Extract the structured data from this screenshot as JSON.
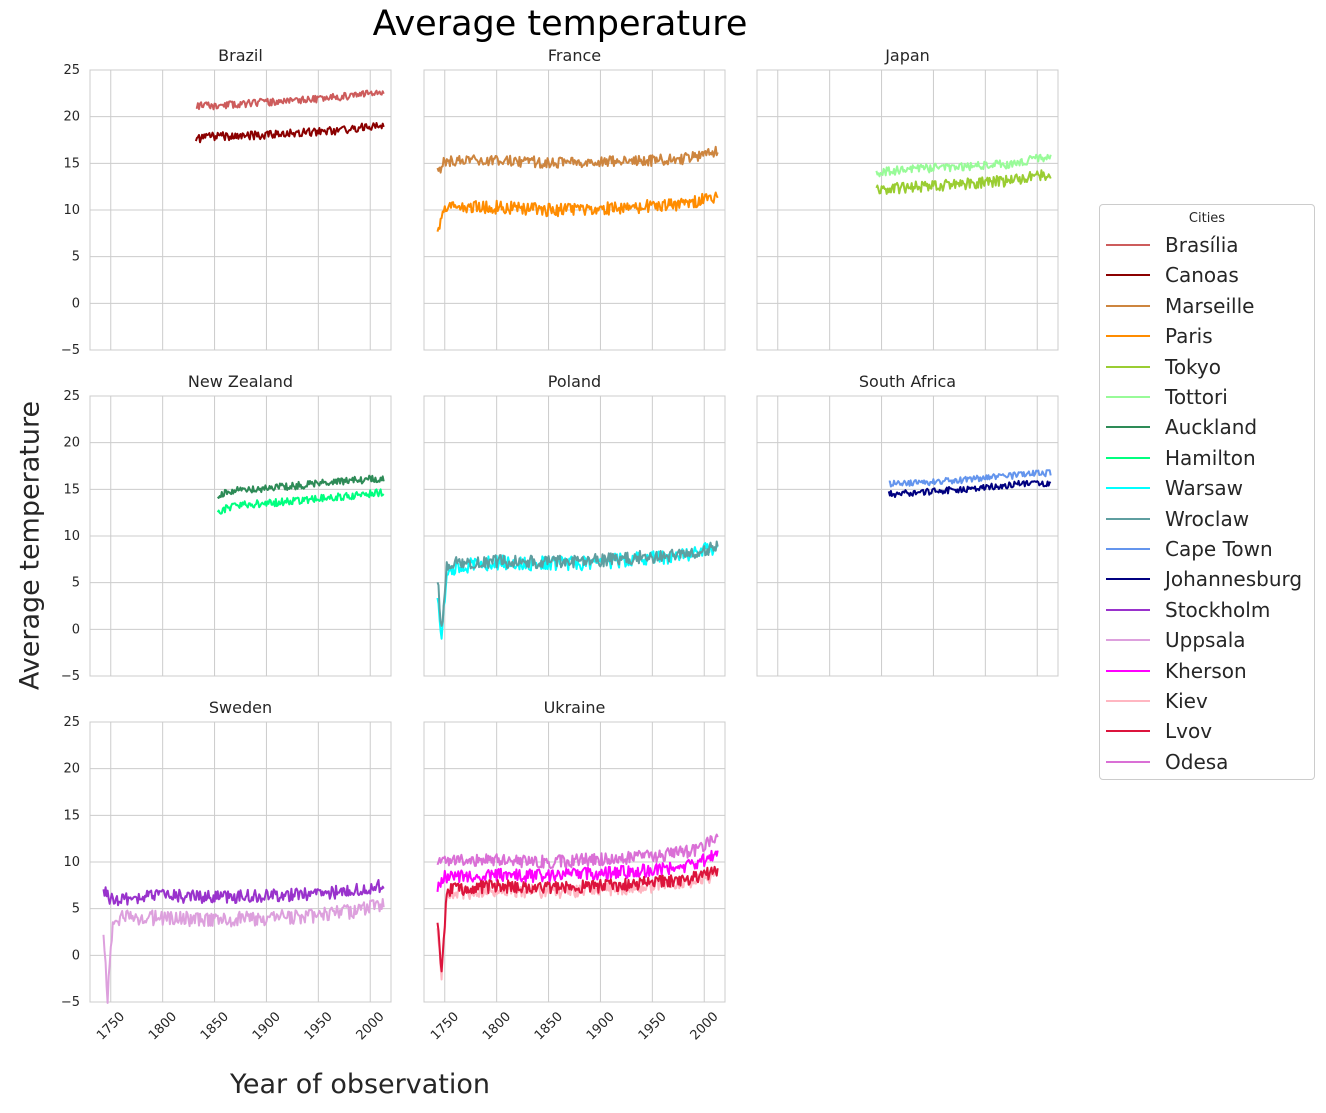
{
  "figure": {
    "title": "Average temperature",
    "ylabel": "Average temperature",
    "xlabel": "Year of observation"
  },
  "legend": {
    "title": "Cities",
    "items": [
      {
        "label": "Brasília",
        "color": "#cd5c5c"
      },
      {
        "label": "Canoas",
        "color": "#8b0000"
      },
      {
        "label": "Marseille",
        "color": "#cd853f"
      },
      {
        "label": "Paris",
        "color": "#ff8c00"
      },
      {
        "label": "Tokyo",
        "color": "#9acd32"
      },
      {
        "label": "Tottori",
        "color": "#98fb98"
      },
      {
        "label": "Auckland",
        "color": "#2e8b57"
      },
      {
        "label": "Hamilton",
        "color": "#00ff7f"
      },
      {
        "label": "Warsaw",
        "color": "#00ffff"
      },
      {
        "label": "Wroclaw",
        "color": "#5f9ea0"
      },
      {
        "label": "Cape Town",
        "color": "#6495ed"
      },
      {
        "label": "Johannesburg",
        "color": "#000080"
      },
      {
        "label": "Stockholm",
        "color": "#9932cc"
      },
      {
        "label": "Uppsala",
        "color": "#dda0dd"
      },
      {
        "label": "Kherson",
        "color": "#ff00ff"
      },
      {
        "label": "Kiev",
        "color": "#ffb6c1"
      },
      {
        "label": "Lvov",
        "color": "#dc143c"
      },
      {
        "label": "Odesa",
        "color": "#da70d6"
      }
    ]
  },
  "chart_data": {
    "type": "line",
    "xlim": [
      1730,
      2020
    ],
    "ylim": [
      -5,
      25
    ],
    "yticks": [
      "−5",
      "0",
      "5",
      "10",
      "15",
      "20",
      "25"
    ],
    "xticks": [
      "1750",
      "1800",
      "1850",
      "1900",
      "1950",
      "2000"
    ],
    "grid": true,
    "legend_position": "right",
    "panels": [
      {
        "title": "Brazil",
        "series": [
          {
            "name": "Brasília",
            "color": "#cd5c5c",
            "start": 1832,
            "end": 2013,
            "points": [
              [
                1832,
                21.2
              ],
              [
                1850,
                21.1
              ],
              [
                1870,
                21.3
              ],
              [
                1890,
                21.5
              ],
              [
                1910,
                21.6
              ],
              [
                1930,
                21.8
              ],
              [
                1950,
                21.9
              ],
              [
                1970,
                22.1
              ],
              [
                1990,
                22.4
              ],
              [
                2013,
                22.6
              ]
            ],
            "noise": 0.4,
            "seed": 11
          },
          {
            "name": "Canoas",
            "color": "#8b0000",
            "start": 1832,
            "end": 2013,
            "points": [
              [
                1832,
                17.6
              ],
              [
                1850,
                17.9
              ],
              [
                1870,
                17.9
              ],
              [
                1890,
                18.0
              ],
              [
                1910,
                18.1
              ],
              [
                1930,
                18.3
              ],
              [
                1950,
                18.4
              ],
              [
                1970,
                18.5
              ],
              [
                1990,
                18.8
              ],
              [
                2013,
                19.2
              ]
            ],
            "noise": 0.45,
            "seed": 12
          }
        ]
      },
      {
        "title": "France",
        "series": [
          {
            "name": "Marseille",
            "color": "#cd853f",
            "start": 1743,
            "end": 2013,
            "points": [
              [
                1743,
                14.0
              ],
              [
                1750,
                15.2
              ],
              [
                1800,
                15.3
              ],
              [
                1850,
                15.1
              ],
              [
                1900,
                15.2
              ],
              [
                1950,
                15.3
              ],
              [
                1980,
                15.5
              ],
              [
                2013,
                16.3
              ]
            ],
            "noise": 0.6,
            "seed": 21
          },
          {
            "name": "Paris",
            "color": "#ff8c00",
            "start": 1743,
            "end": 2013,
            "points": [
              [
                1743,
                7.0
              ],
              [
                1750,
                10.2
              ],
              [
                1800,
                10.3
              ],
              [
                1850,
                10.0
              ],
              [
                1900,
                10.1
              ],
              [
                1950,
                10.4
              ],
              [
                1980,
                10.6
              ],
              [
                2013,
                11.4
              ]
            ],
            "noise": 0.7,
            "seed": 22
          }
        ]
      },
      {
        "title": "Japan",
        "series": [
          {
            "name": "Tokyo",
            "color": "#9acd32",
            "start": 1845,
            "end": 2013,
            "points": [
              [
                1845,
                12.2
              ],
              [
                1870,
                12.4
              ],
              [
                1900,
                12.6
              ],
              [
                1930,
                12.8
              ],
              [
                1950,
                13.0
              ],
              [
                1970,
                13.1
              ],
              [
                1990,
                13.5
              ],
              [
                2013,
                13.9
              ]
            ],
            "noise": 0.6,
            "seed": 31
          },
          {
            "name": "Tottori",
            "color": "#98fb98",
            "start": 1845,
            "end": 2013,
            "points": [
              [
                1845,
                14.0
              ],
              [
                1870,
                14.3
              ],
              [
                1900,
                14.5
              ],
              [
                1930,
                14.6
              ],
              [
                1950,
                14.8
              ],
              [
                1970,
                14.9
              ],
              [
                1990,
                15.3
              ],
              [
                2013,
                15.8
              ]
            ],
            "noise": 0.45,
            "seed": 32
          }
        ]
      },
      {
        "title": "New Zealand",
        "series": [
          {
            "name": "Auckland",
            "color": "#2e8b57",
            "start": 1853,
            "end": 2013,
            "points": [
              [
                1853,
                14.3
              ],
              [
                1870,
                15.0
              ],
              [
                1900,
                15.1
              ],
              [
                1930,
                15.4
              ],
              [
                1950,
                15.6
              ],
              [
                1970,
                15.8
              ],
              [
                1990,
                16.0
              ],
              [
                2013,
                16.2
              ]
            ],
            "noise": 0.4,
            "seed": 41
          },
          {
            "name": "Hamilton",
            "color": "#00ff7f",
            "start": 1853,
            "end": 2013,
            "points": [
              [
                1853,
                12.6
              ],
              [
                1870,
                13.3
              ],
              [
                1900,
                13.5
              ],
              [
                1930,
                13.8
              ],
              [
                1950,
                14.0
              ],
              [
                1970,
                14.2
              ],
              [
                1990,
                14.4
              ],
              [
                2013,
                14.7
              ]
            ],
            "noise": 0.4,
            "seed": 42
          }
        ]
      },
      {
        "title": "Poland",
        "series": [
          {
            "name": "Warsaw",
            "color": "#00ffff",
            "start": 1743,
            "end": 2013,
            "points": [
              [
                1743,
                4.0
              ],
              [
                1747,
                -1.0
              ],
              [
                1752,
                6.5
              ],
              [
                1800,
                7.2
              ],
              [
                1850,
                7.0
              ],
              [
                1900,
                7.2
              ],
              [
                1950,
                7.6
              ],
              [
                1990,
                8.1
              ],
              [
                2013,
                8.9
              ]
            ],
            "noise": 0.8,
            "seed": 51
          },
          {
            "name": "Wroclaw",
            "color": "#5f9ea0",
            "start": 1743,
            "end": 2013,
            "points": [
              [
                1743,
                5.5
              ],
              [
                1747,
                0.0
              ],
              [
                1752,
                7.0
              ],
              [
                1800,
                7.3
              ],
              [
                1850,
                7.2
              ],
              [
                1900,
                7.4
              ],
              [
                1950,
                7.8
              ],
              [
                1990,
                8.2
              ],
              [
                2013,
                8.8
              ]
            ],
            "noise": 0.7,
            "seed": 52
          }
        ]
      },
      {
        "title": "South Africa",
        "series": [
          {
            "name": "Cape Town",
            "color": "#6495ed",
            "start": 1857,
            "end": 2013,
            "points": [
              [
                1857,
                15.6
              ],
              [
                1880,
                15.7
              ],
              [
                1900,
                15.8
              ],
              [
                1930,
                16.0
              ],
              [
                1950,
                16.2
              ],
              [
                1970,
                16.4
              ],
              [
                1990,
                16.6
              ],
              [
                2013,
                16.8
              ]
            ],
            "noise": 0.35,
            "seed": 61
          },
          {
            "name": "Johannesburg",
            "color": "#000080",
            "start": 1857,
            "end": 2013,
            "points": [
              [
                1857,
                14.5
              ],
              [
                1880,
                14.6
              ],
              [
                1900,
                14.8
              ],
              [
                1930,
                15.0
              ],
              [
                1950,
                15.2
              ],
              [
                1970,
                15.4
              ],
              [
                1990,
                15.7
              ],
              [
                2013,
                15.6
              ]
            ],
            "noise": 0.35,
            "seed": 62
          }
        ]
      },
      {
        "title": "Sweden",
        "series": [
          {
            "name": "Stockholm",
            "color": "#9932cc",
            "start": 1743,
            "end": 2013,
            "points": [
              [
                1743,
                7.0
              ],
              [
                1750,
                6.0
              ],
              [
                1800,
                6.4
              ],
              [
                1850,
                6.2
              ],
              [
                1900,
                6.4
              ],
              [
                1950,
                6.6
              ],
              [
                1990,
                7.0
              ],
              [
                2013,
                7.5
              ]
            ],
            "noise": 0.7,
            "seed": 71
          },
          {
            "name": "Uppsala",
            "color": "#dda0dd",
            "start": 1743,
            "end": 2013,
            "points": [
              [
                1743,
                2.0
              ],
              [
                1747,
                -4.5
              ],
              [
                1752,
                4.0
              ],
              [
                1800,
                4.0
              ],
              [
                1850,
                3.8
              ],
              [
                1900,
                4.0
              ],
              [
                1950,
                4.3
              ],
              [
                1990,
                4.8
              ],
              [
                2013,
                5.5
              ]
            ],
            "noise": 0.8,
            "seed": 72
          }
        ]
      },
      {
        "title": "Ukraine",
        "series": [
          {
            "name": "Odesa",
            "color": "#da70d6",
            "start": 1743,
            "end": 2013,
            "points": [
              [
                1743,
                10.0
              ],
              [
                1750,
                10.2
              ],
              [
                1800,
                10.2
              ],
              [
                1850,
                10.0
              ],
              [
                1900,
                10.3
              ],
              [
                1950,
                10.6
              ],
              [
                1990,
                11.2
              ],
              [
                2013,
                12.5
              ]
            ],
            "noise": 0.7,
            "seed": 81
          },
          {
            "name": "Kherson",
            "color": "#ff00ff",
            "start": 1743,
            "end": 2013,
            "points": [
              [
                1743,
                7.0
              ],
              [
                1750,
                8.5
              ],
              [
                1800,
                8.6
              ],
              [
                1850,
                8.5
              ],
              [
                1900,
                8.8
              ],
              [
                1950,
                9.1
              ],
              [
                1990,
                9.6
              ],
              [
                2013,
                11.0
              ]
            ],
            "noise": 0.7,
            "seed": 82
          },
          {
            "name": "Kiev",
            "color": "#ffb6c1",
            "start": 1743,
            "end": 2013,
            "points": [
              [
                1743,
                3.0
              ],
              [
                1747,
                -2.0
              ],
              [
                1752,
                6.5
              ],
              [
                1800,
                7.0
              ],
              [
                1850,
                6.8
              ],
              [
                1900,
                7.0
              ],
              [
                1950,
                7.4
              ],
              [
                1990,
                8.0
              ],
              [
                2013,
                8.6
              ]
            ],
            "noise": 0.7,
            "seed": 83
          },
          {
            "name": "Lvov",
            "color": "#dc143c",
            "start": 1743,
            "end": 2013,
            "points": [
              [
                1743,
                3.5
              ],
              [
                1747,
                -1.5
              ],
              [
                1752,
                7.0
              ],
              [
                1800,
                7.4
              ],
              [
                1850,
                7.2
              ],
              [
                1900,
                7.4
              ],
              [
                1950,
                7.8
              ],
              [
                1990,
                8.3
              ],
              [
                2013,
                9.0
              ]
            ],
            "noise": 0.7,
            "seed": 84
          }
        ]
      }
    ]
  }
}
